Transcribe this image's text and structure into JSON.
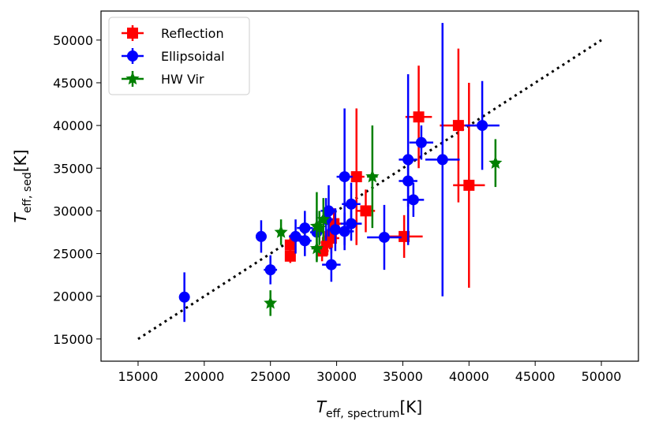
{
  "chart_data": {
    "type": "scatter",
    "xlabel": {
      "main": "T",
      "sub": "eff, spectrum",
      "unit": "[K]"
    },
    "ylabel": {
      "main": "T",
      "sub": "eff, sed",
      "unit": "[K]"
    },
    "xlim": [
      12200,
      52800
    ],
    "ylim": [
      12400,
      53400
    ],
    "xticks": [
      15000,
      20000,
      25000,
      30000,
      35000,
      40000,
      45000,
      50000
    ],
    "yticks": [
      15000,
      20000,
      25000,
      30000,
      35000,
      40000,
      45000,
      50000
    ],
    "grid": false,
    "legend_position": "top-left",
    "reference_line": {
      "style": "dotted",
      "color": "#000000",
      "x": [
        15000,
        50000
      ],
      "y": [
        15000,
        50000
      ]
    },
    "series": [
      {
        "name": "Reflection",
        "color": "#ff0000",
        "marker": "square",
        "points": [
          {
            "x": 26500,
            "y": 24700,
            "xerr": 400,
            "yerr": 800
          },
          {
            "x": 26500,
            "y": 26000,
            "xerr": 400,
            "yerr": 1200
          },
          {
            "x": 28900,
            "y": 25300,
            "xerr": 500,
            "yerr": 1200
          },
          {
            "x": 29300,
            "y": 26300,
            "xerr": 500,
            "yerr": 1500
          },
          {
            "x": 29600,
            "y": 26800,
            "xerr": 600,
            "yerr": 1800
          },
          {
            "x": 29800,
            "y": 28500,
            "xerr": 600,
            "yerr": 1800
          },
          {
            "x": 29500,
            "y": 27000,
            "xerr": 500,
            "yerr": 1500
          },
          {
            "x": 31500,
            "y": 34000,
            "xerr": 600,
            "yerr": 8000
          },
          {
            "x": 32200,
            "y": 30000,
            "xerr": 700,
            "yerr": 2500
          },
          {
            "x": 35100,
            "y": 27000,
            "xerr": 1400,
            "yerr": 2500
          },
          {
            "x": 36200,
            "y": 41000,
            "xerr": 1000,
            "yerr": 6000
          },
          {
            "x": 39200,
            "y": 40000,
            "xerr": 1400,
            "yerr": 9000
          },
          {
            "x": 40000,
            "y": 33000,
            "xerr": 1200,
            "yerr": 12000
          }
        ]
      },
      {
        "name": "Ellipsoidal",
        "color": "#0000ff",
        "marker": "circle",
        "points": [
          {
            "x": 18500,
            "y": 19900,
            "xerr": 300,
            "yerr": 2900
          },
          {
            "x": 24300,
            "y": 27000,
            "xerr": 400,
            "yerr": 1900
          },
          {
            "x": 25000,
            "y": 23100,
            "xerr": 500,
            "yerr": 1700
          },
          {
            "x": 26900,
            "y": 27000,
            "xerr": 500,
            "yerr": 2000
          },
          {
            "x": 27600,
            "y": 26500,
            "xerr": 500,
            "yerr": 1800
          },
          {
            "x": 27600,
            "y": 28000,
            "xerr": 600,
            "yerr": 2000
          },
          {
            "x": 28500,
            "y": 27500,
            "xerr": 500,
            "yerr": 2500
          },
          {
            "x": 29200,
            "y": 29000,
            "xerr": 500,
            "yerr": 2500
          },
          {
            "x": 29400,
            "y": 30000,
            "xerr": 600,
            "yerr": 3000
          },
          {
            "x": 29600,
            "y": 23700,
            "xerr": 700,
            "yerr": 2000
          },
          {
            "x": 29900,
            "y": 27800,
            "xerr": 600,
            "yerr": 2500
          },
          {
            "x": 30600,
            "y": 34000,
            "xerr": 600,
            "yerr": 8000
          },
          {
            "x": 30600,
            "y": 27600,
            "xerr": 700,
            "yerr": 2200
          },
          {
            "x": 31100,
            "y": 30800,
            "xerr": 700,
            "yerr": 2500
          },
          {
            "x": 31100,
            "y": 28500,
            "xerr": 800,
            "yerr": 2000
          },
          {
            "x": 33600,
            "y": 26900,
            "xerr": 1300,
            "yerr": 3800
          },
          {
            "x": 35400,
            "y": 36000,
            "xerr": 700,
            "yerr": 10000
          },
          {
            "x": 35400,
            "y": 33500,
            "xerr": 700,
            "yerr": 3000
          },
          {
            "x": 35800,
            "y": 31300,
            "xerr": 800,
            "yerr": 2000
          },
          {
            "x": 36400,
            "y": 38000,
            "xerr": 900,
            "yerr": 2000
          },
          {
            "x": 38000,
            "y": 36000,
            "xerr": 1300,
            "yerr": 16000
          },
          {
            "x": 41000,
            "y": 40000,
            "xerr": 1300,
            "yerr": 5200
          }
        ]
      },
      {
        "name": "HW Vir",
        "color": "#008000",
        "marker": "triangle",
        "points": [
          {
            "x": 25000,
            "y": 19200,
            "xerr": 300,
            "yerr": 1500
          },
          {
            "x": 25800,
            "y": 27500,
            "xerr": 300,
            "yerr": 1500
          },
          {
            "x": 28500,
            "y": 28200,
            "xerr": 300,
            "yerr": 4000
          },
          {
            "x": 28500,
            "y": 25600,
            "xerr": 400,
            "yerr": 1600
          },
          {
            "x": 28700,
            "y": 28000,
            "xerr": 300,
            "yerr": 2000
          },
          {
            "x": 29000,
            "y": 29000,
            "xerr": 300,
            "yerr": 2500
          },
          {
            "x": 32700,
            "y": 34000,
            "xerr": 400,
            "yerr": 6000
          },
          {
            "x": 42000,
            "y": 35600,
            "xerr": 300,
            "yerr": 2800
          }
        ]
      }
    ]
  }
}
